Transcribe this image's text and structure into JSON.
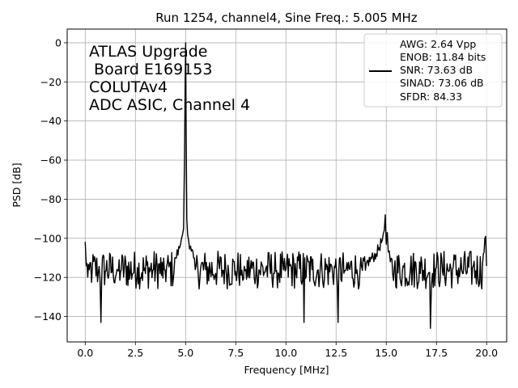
{
  "chart_data": {
    "type": "line",
    "title": "Run 1254, channel4, Sine Freq.: 5.005 MHz",
    "xlabel": "Frequency [MHz]",
    "ylabel": "PSD [dB]",
    "xlim": [
      -0.9,
      21.0
    ],
    "ylim": [
      -153,
      7
    ],
    "xticks": [
      0.0,
      2.5,
      5.0,
      7.5,
      10.0,
      12.5,
      15.0,
      17.5,
      20.0
    ],
    "xtick_labels": [
      "0.0",
      "2.5",
      "5.0",
      "7.5",
      "10.0",
      "12.5",
      "15.0",
      "17.5",
      "20.0"
    ],
    "yticks": [
      0,
      -20,
      -40,
      -60,
      -80,
      -100,
      -120,
      -140
    ],
    "ytick_labels": [
      "0",
      "−20",
      "−40",
      "−60",
      "−80",
      "−100",
      "−120",
      "−140"
    ],
    "grid": true,
    "legend_position": "top-right",
    "annotation_lines": [
      "ATLAS Upgrade",
      " Board E169153",
      "COLUTAv4",
      "ADC ASIC, Channel 4"
    ],
    "legend_lines": [
      "AWG: 2.64 Vpp",
      "ENOB: 11.84 bits",
      "SNR: 73.63 dB",
      "SINAD: 73.06 dB",
      "SFDR: 84.33"
    ],
    "line_color": "#000000",
    "grid_color": "#b0b0b0",
    "series": [
      {
        "noise_floor_db": -116,
        "x": [
          0.0,
          0.05,
          0.35,
          0.65,
          0.78,
          1.0,
          1.4,
          1.8,
          2.2,
          2.6,
          3.0,
          3.4,
          3.8,
          4.2,
          4.5,
          4.7,
          4.8,
          4.9,
          4.95,
          4.98,
          5.005,
          5.03,
          5.06,
          5.1,
          5.15,
          5.25,
          5.4,
          5.6,
          6.0,
          6.5,
          7.0,
          7.5,
          8.0,
          8.5,
          9.0,
          9.5,
          10.0,
          10.5,
          10.9,
          11.3,
          11.8,
          12.3,
          12.6,
          13.0,
          13.5,
          14.0,
          14.5,
          14.8,
          14.9,
          14.95,
          15.0,
          15.05,
          15.1,
          15.2,
          15.4,
          15.8,
          16.2,
          16.7,
          17.2,
          17.3,
          17.5,
          17.8,
          18.3,
          18.8,
          19.3,
          19.8,
          19.95,
          20.0
        ],
        "y": [
          -102,
          -114,
          -116,
          -118,
          -143,
          -117,
          -119,
          -116,
          -121,
          -115,
          -118,
          -116,
          -119,
          -113,
          -110,
          -105,
          -100,
          -95,
          -58,
          -20,
          0,
          -45,
          -90,
          -98,
          -101,
          -104,
          -110,
          -114,
          -116,
          -118,
          -115,
          -117,
          -116,
          -119,
          -115,
          -117,
          -116,
          -118,
          -143,
          -116,
          -117,
          -115,
          -143,
          -116,
          -118,
          -113,
          -108,
          -101,
          -96,
          -88,
          -103,
          -97,
          -107,
          -112,
          -115,
          -117,
          -116,
          -118,
          -146,
          -118,
          -115,
          -117,
          -116,
          -118,
          -115,
          -113,
          -99,
          -114
        ]
      }
    ]
  }
}
